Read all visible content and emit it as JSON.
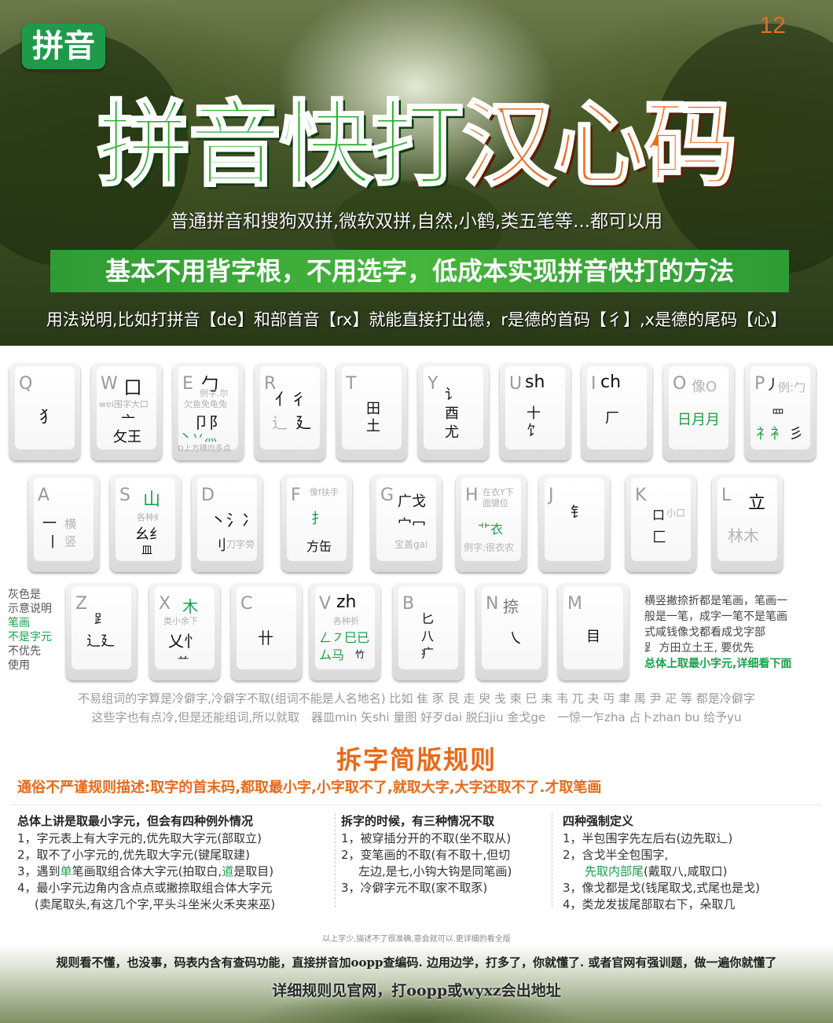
{
  "header": {
    "badge": "拼音",
    "page_number": "12",
    "title_green": "拼音快打",
    "title_orange": "汉心码",
    "subtitle": "普通拼音和搜狗双拼,微软双拼,自然,小鹤,类五笔等...都可以用",
    "banner": "基本不用背字根，不用选字，低成本实现拼音快打的方法",
    "usage": "用法说明,比如打拼音【de】和部首音【rx】就能直接打出德，r是德的首码【彳】,x是德的尾码【心】"
  },
  "keyboard": {
    "q": {
      "letter": "Q",
      "c1": "犭"
    },
    "w": {
      "letter": "W",
      "big": "囗",
      "hint": "wei围字大口",
      "c1": "亠",
      "c2": "攵王"
    },
    "e": {
      "letter": "E",
      "big": "勹",
      "hint1": "例字,尔",
      "hint2": "欠鱼免龟兔",
      "c1": "卩阝",
      "c2": "丶丷灬",
      "hint3": "D上方横向多点"
    },
    "r": {
      "letter": "R",
      "c1": "亻彳",
      "c2": "辶",
      "c3": "廴"
    },
    "t": {
      "letter": "T",
      "c1": "田",
      "c2": "土"
    },
    "y": {
      "letter": "Y",
      "c1": "讠",
      "c2": "酉",
      "c3": "尤"
    },
    "u": {
      "letter": "U",
      "sh": "sh",
      "c1": "十",
      "c2": "饣"
    },
    "i": {
      "letter": "I",
      "ch": "ch",
      "c1": "厂"
    },
    "o": {
      "letter": "O",
      "hint": "像O",
      "c1": "日月月"
    },
    "p": {
      "letter": "P",
      "big": "丿",
      "hint": "例:勹",
      "c1": "罒",
      "c2": "礻衤",
      "c3": "彡"
    },
    "a": {
      "letter": "A",
      "c1": "一",
      "c2": "丨",
      "h1": "横",
      "h2": "竖"
    },
    "s": {
      "letter": "S",
      "big": "山",
      "hint": "各种纟",
      "c1": "幺纟",
      "c2": "皿"
    },
    "d": {
      "letter": "D",
      "c1": "丶氵冫",
      "c2": "刂",
      "hint": "刀字旁"
    },
    "f": {
      "letter": "F",
      "hint": "像f扶手",
      "c1": "扌",
      "c2": "方缶"
    },
    "g": {
      "letter": "G",
      "c1": "广戈",
      "c2": "宀冖",
      "hint": "宝盖gai"
    },
    "h": {
      "letter": "H",
      "hint1": "在衣Y下",
      "hint2": "面键位",
      "c1": "⻀衣",
      "hint3": "例字:很衣农"
    },
    "j": {
      "letter": "J",
      "c1": "钅"
    },
    "k": {
      "letter": "K",
      "c1": "口",
      "hint": "小口",
      "c2": "匚"
    },
    "l": {
      "letter": "L",
      "big": "立",
      "c1": "林木"
    },
    "z": {
      "letter": "Z",
      "c1": "⻊",
      "c2": "辶廴"
    },
    "x": {
      "letter": "X",
      "big": "木",
      "hint": "类小余下",
      "c1": "乂忄",
      "c2": "䒑"
    },
    "c": {
      "letter": "C",
      "c1": "卄"
    },
    "v": {
      "letter": "V",
      "zh": "zh",
      "hint": "各种折",
      "c1": "ㄥ㇇巳已",
      "c2": "ム马",
      "c3": "竹"
    },
    "b": {
      "letter": "B",
      "c1": "匕",
      "c2": "八",
      "c3": "疒"
    },
    "n": {
      "letter": "N",
      "big": "捺",
      "c1": "㇏"
    },
    "m": {
      "letter": "M",
      "c1": "目"
    }
  },
  "side_notes": {
    "left_1": "灰色是",
    "left_2": "示意说明",
    "left_3": "笔画",
    "left_4": "不是字元",
    "left_5": "不优先",
    "left_6": "使用",
    "right_1": "横竖撇捺折都是笔画，笔画一",
    "right_2": "般是一笔，成字一笔不是笔画",
    "right_3": "式咸钱像戈都看成戈字部",
    "right_4": "⻊ 方田立土王, 要优先",
    "right_5": "总体上取最小字元,详细看下面"
  },
  "notes": {
    "line1": "不易组词的字算是冷僻字,冷僻字不取(组词不能是人名地名) 比如 隹 豕 艮 走 臾 戋 柬 巳 耒 韦 兀 夬 丏 聿 禺 尹 疋 等 都是冷僻字",
    "line2": "这些字也有点冷,但是还能组词,所以就取　器皿min 矢shi 量图  好歹dai 脱臼jiu 金戈ge　一惊一乍zha 占卜zhan bu 给予yu"
  },
  "rules": {
    "title": "拆字简版规则",
    "summary": "通俗不严谨规则描述:取字的首末码,都取最小字,小字取不了,就取大字,大字还取不了.才取笔画",
    "col1": {
      "head": "总体上讲是取最小字元，但会有四种例外情况",
      "l1": "1，字元表上有大字元的,优先取大字元(部取立)",
      "l2": "2，取不了小字元的,优先取大字元(键尾取建)",
      "l3a": "3，遇到",
      "l3b": "单",
      "l3c": "笔画取组合体大字元(拍取白,",
      "l3d": "道",
      "l3e": "是取目)",
      "l4": "4，最小字元边角内含点点或撇捺取组合体大字元",
      "l5": "(卖尾取头,有这几个字,平头斗坐米火禾夹来巫)"
    },
    "col2": {
      "head": "拆字的时候，有三种情况不取",
      "l1": "1，被穿插分开的不取(坐不取从)",
      "l2": "2，变笔画的不取(有不取十,但切",
      "l3": "左边,是七,小钩大钩是同笔画)",
      "l4": "3，冷僻字元不取(家不取豕)"
    },
    "col3": {
      "head": "四种强制定义",
      "l1": "1，半包围字先左后右(边先取辶)",
      "l2": "2，含戈半全包围字,",
      "l3a": "先取内部尾",
      "l3b": "(戴取八,咸取口)",
      "l4": "3，像戈都是戈(钱尾取戈,式尾也是戈)",
      "l5": "4，类龙发拔尾部取右下，朵取几"
    }
  },
  "tiny_note": "以上字少,描述不了很准确,意会就可以.更详细的看全版",
  "footer": {
    "line1": "规则看不懂，也没事，码表内含有查码功能，直接拼音加oopp查编码. 边用边学，打多了，你就懂了. 或者官网有强训题，做一遍你就懂了",
    "line2": "详细规则见官网，打oopp或wyxz会出地址"
  },
  "colors": {
    "green": "#1aa04a",
    "orange": "#e86a18",
    "banner_green": "#3aab38"
  }
}
